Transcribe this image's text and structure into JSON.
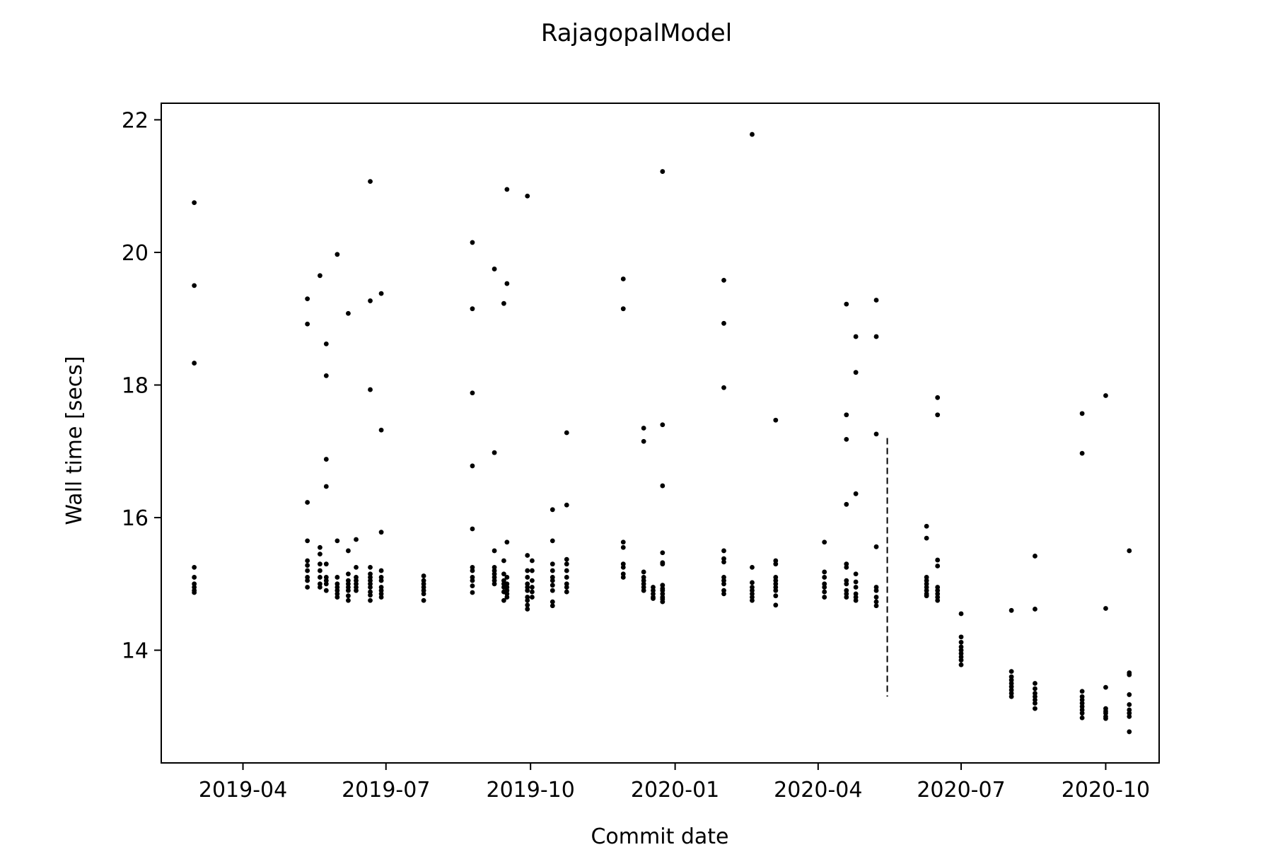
{
  "chart_data": {
    "type": "scatter",
    "title": "RajagopalModel",
    "xlabel": "Commit date",
    "ylabel": "Wall time [secs]",
    "xlim": [
      "2019-02-08",
      "2020-11-04"
    ],
    "ylim": [
      12.3,
      22.25
    ],
    "x_ticks": [
      "2019-04",
      "2019-07",
      "2019-10",
      "2020-01",
      "2020-04",
      "2020-07",
      "2020-10"
    ],
    "x_tick_dates": [
      "2019-04-01",
      "2019-07-01",
      "2019-10-01",
      "2020-01-01",
      "2020-04-01",
      "2020-07-01",
      "2020-10-01"
    ],
    "y_ticks": [
      14,
      16,
      18,
      20,
      22
    ],
    "grid": false,
    "marker_color": "#000000",
    "vline": {
      "x": "2020-05-15",
      "y_range": [
        13.3,
        17.2
      ],
      "style": "dashed"
    },
    "points": [
      {
        "x": "2019-03-01",
        "y": [
          20.75,
          19.5,
          18.33,
          15.25,
          15.1,
          15.0,
          14.95,
          14.9,
          14.87
        ]
      },
      {
        "x": "2019-05-12",
        "y": [
          19.3,
          18.92,
          16.23,
          15.65,
          15.35,
          15.28,
          15.2,
          15.1,
          15.05,
          14.95
        ]
      },
      {
        "x": "2019-05-20",
        "y": [
          19.65,
          15.55,
          15.45,
          15.3,
          15.2,
          15.1,
          15.0,
          14.95
        ]
      },
      {
        "x": "2019-05-24",
        "y": [
          18.62,
          18.14,
          16.88,
          16.47,
          15.3,
          15.1,
          15.05,
          15.0,
          14.9
        ]
      },
      {
        "x": "2019-05-31",
        "y": [
          19.97,
          15.65,
          15.1,
          15.0,
          14.95,
          14.9,
          14.85,
          14.8
        ]
      },
      {
        "x": "2019-06-07",
        "y": [
          19.08,
          15.5,
          15.15,
          15.05,
          15.0,
          14.95,
          14.9,
          14.82,
          14.75
        ]
      },
      {
        "x": "2019-06-12",
        "y": [
          15.67,
          15.25,
          15.1,
          15.05,
          15.0,
          14.95,
          14.9
        ]
      },
      {
        "x": "2019-06-21",
        "y": [
          21.07,
          19.27,
          17.93,
          15.25,
          15.15,
          15.1,
          15.05,
          15.0,
          14.95,
          14.88,
          14.83,
          14.75
        ]
      },
      {
        "x": "2019-06-28",
        "y": [
          19.38,
          17.32,
          15.78,
          15.2,
          15.1,
          15.05,
          14.95,
          14.9,
          14.85,
          14.8
        ]
      },
      {
        "x": "2019-07-25",
        "y": [
          15.12,
          15.05,
          15.0,
          14.95,
          14.9,
          14.85,
          14.75
        ]
      },
      {
        "x": "2019-08-25",
        "y": [
          20.15,
          19.15,
          17.88,
          16.78,
          15.83,
          15.25,
          15.2,
          15.1,
          15.05,
          14.97,
          14.87
        ]
      },
      {
        "x": "2019-09-08",
        "y": [
          19.75,
          16.98,
          15.5,
          15.25,
          15.2,
          15.15,
          15.1,
          15.05,
          15.0
        ]
      },
      {
        "x": "2019-09-14",
        "y": [
          19.23,
          15.35,
          15.15,
          15.05,
          15.0,
          14.95,
          14.88,
          14.75
        ]
      },
      {
        "x": "2019-09-16",
        "y": [
          20.95,
          19.53,
          15.63,
          15.1,
          15.0,
          14.95,
          14.9,
          14.85,
          14.8
        ]
      },
      {
        "x": "2019-09-29",
        "y": [
          20.85,
          15.43,
          15.2,
          15.1,
          15.0,
          14.95,
          14.9,
          14.8,
          14.75,
          14.68,
          14.62
        ]
      },
      {
        "x": "2019-10-02",
        "y": [
          15.35,
          15.2,
          15.05,
          14.95,
          14.88,
          14.8
        ]
      },
      {
        "x": "2019-10-15",
        "y": [
          16.12,
          15.65,
          15.3,
          15.2,
          15.1,
          15.05,
          14.98,
          14.9,
          14.73,
          14.67
        ]
      },
      {
        "x": "2019-10-24",
        "y": [
          17.28,
          16.19,
          15.37,
          15.3,
          15.2,
          15.1,
          15.0,
          14.95,
          14.88
        ]
      },
      {
        "x": "2019-11-29",
        "y": [
          19.6,
          19.15,
          15.63,
          15.55,
          15.3,
          15.25,
          15.15,
          15.1
        ]
      },
      {
        "x": "2019-12-12",
        "y": [
          17.35,
          17.15,
          15.18,
          15.1,
          15.05,
          15.0,
          14.95,
          14.9
        ]
      },
      {
        "x": "2019-12-18",
        "y": [
          14.95,
          14.9,
          14.85,
          14.8,
          14.78
        ]
      },
      {
        "x": "2019-12-24",
        "y": [
          21.22,
          17.4,
          16.48,
          15.47,
          15.32,
          15.3,
          14.98,
          14.93,
          14.9,
          14.85,
          14.8,
          14.77,
          14.73
        ]
      },
      {
        "x": "2020-02-01",
        "y": [
          19.58,
          18.93,
          17.96,
          15.5,
          15.38,
          15.33,
          15.1,
          15.05,
          15.0,
          14.9,
          14.85
        ]
      },
      {
        "x": "2020-02-19",
        "y": [
          21.78,
          15.25,
          15.02,
          14.95,
          14.9,
          14.85,
          14.8,
          14.75
        ]
      },
      {
        "x": "2020-03-05",
        "y": [
          17.47,
          15.35,
          15.3,
          15.1,
          15.05,
          15.0,
          14.95,
          14.9,
          14.82,
          14.68
        ]
      },
      {
        "x": "2020-04-05",
        "y": [
          15.63,
          15.18,
          15.1,
          15.0,
          14.95,
          14.88,
          14.8
        ]
      },
      {
        "x": "2020-04-19",
        "y": [
          19.22,
          17.55,
          17.18,
          16.2,
          15.3,
          15.25,
          15.05,
          15.0,
          14.9,
          14.85,
          14.8
        ]
      },
      {
        "x": "2020-04-25",
        "y": [
          18.73,
          18.19,
          16.36,
          15.15,
          15.03,
          14.95,
          14.85,
          14.8,
          14.75
        ]
      },
      {
        "x": "2020-05-08",
        "y": [
          19.28,
          18.73,
          17.26,
          15.56,
          14.95,
          14.9,
          14.8,
          14.73,
          14.67
        ]
      },
      {
        "x": "2020-06-09",
        "y": [
          15.87,
          15.69,
          15.1,
          15.05,
          15.0,
          14.95,
          14.9,
          14.85,
          14.82
        ]
      },
      {
        "x": "2020-06-16",
        "y": [
          17.81,
          17.55,
          15.36,
          15.27,
          14.95,
          14.9,
          14.85,
          14.8,
          14.75
        ]
      },
      {
        "x": "2020-07-01",
        "y": [
          14.55,
          14.2,
          14.12,
          14.05,
          14.0,
          13.95,
          13.9,
          13.85,
          13.78
        ]
      },
      {
        "x": "2020-08-02",
        "y": [
          14.6,
          13.68,
          13.6,
          13.55,
          13.5,
          13.45,
          13.4,
          13.35,
          13.3
        ]
      },
      {
        "x": "2020-08-17",
        "y": [
          15.42,
          14.62,
          13.5,
          13.42,
          13.35,
          13.3,
          13.25,
          13.2,
          13.12
        ]
      },
      {
        "x": "2020-09-16",
        "y": [
          17.57,
          16.97,
          13.38,
          13.3,
          13.25,
          13.2,
          13.15,
          13.1,
          13.05,
          12.98
        ]
      },
      {
        "x": "2020-10-01",
        "y": [
          17.84,
          14.63,
          13.44,
          13.12,
          13.08,
          13.05,
          13.0,
          12.97
        ]
      },
      {
        "x": "2020-10-16",
        "y": [
          15.5,
          13.66,
          13.63,
          13.33,
          13.18,
          13.1,
          13.05,
          13.0,
          12.77
        ]
      }
    ]
  }
}
